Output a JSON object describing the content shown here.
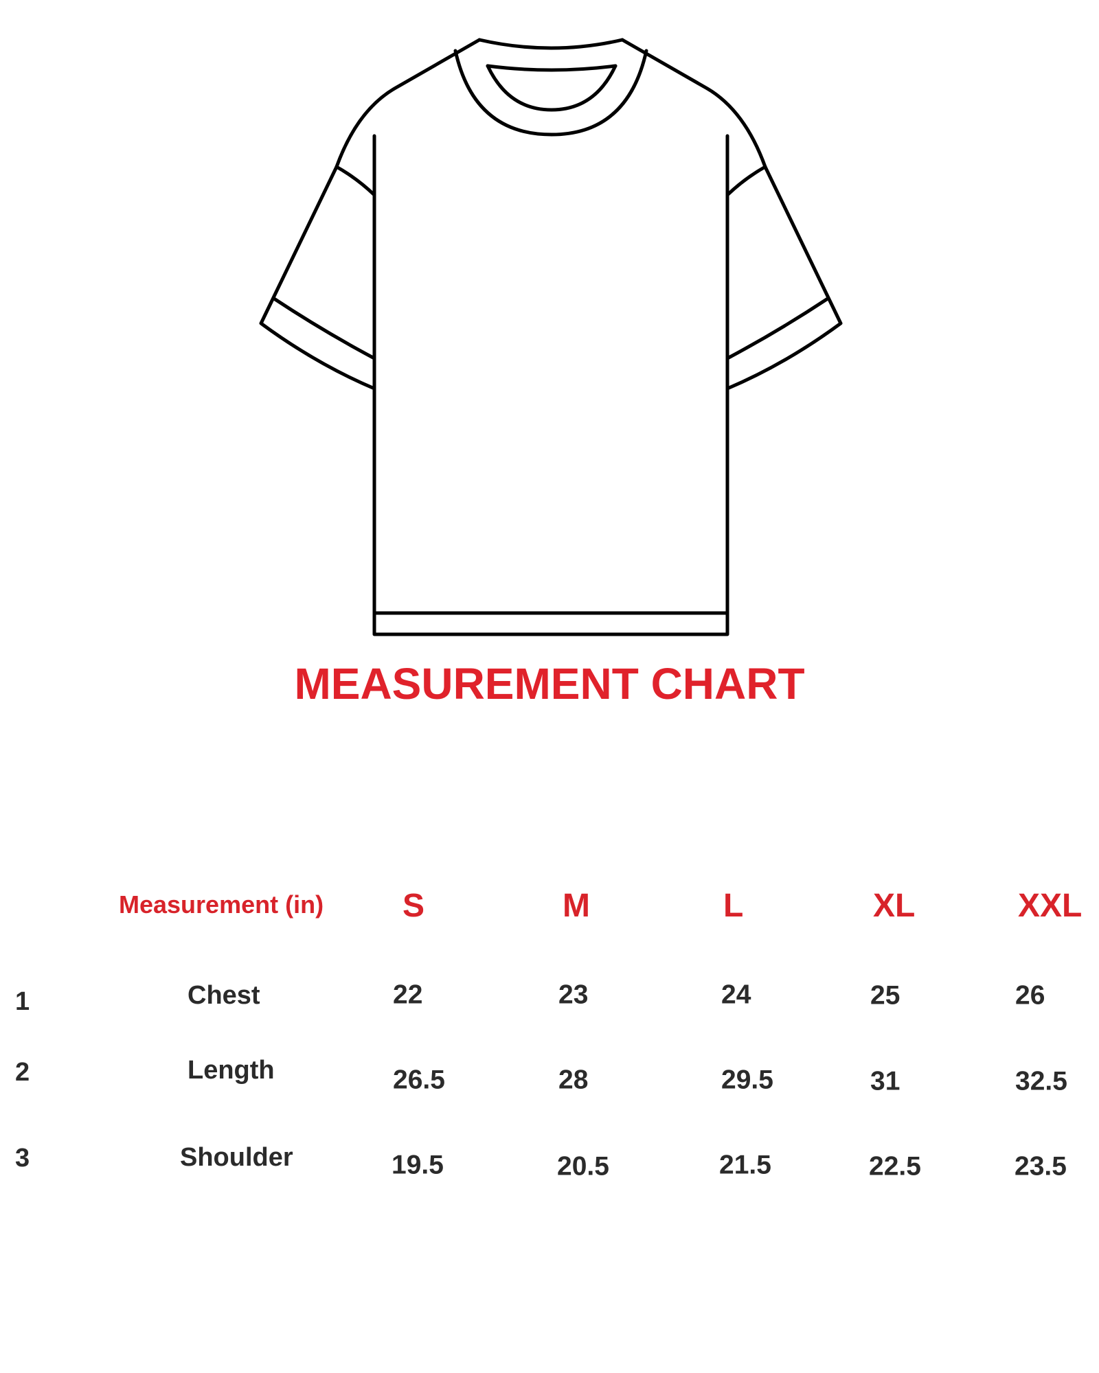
{
  "title": "MEASUREMENT CHART",
  "accent_color": "#e0222b",
  "table": {
    "header_label": "Measurement (in)",
    "sizes": [
      "S",
      "M",
      "L",
      "XL",
      "XXL"
    ],
    "rows": [
      {
        "index": "1",
        "label": "Chest",
        "values": [
          "22",
          "23",
          "24",
          "25",
          "26"
        ]
      },
      {
        "index": "2",
        "label": "Length",
        "values": [
          "26.5",
          "28",
          "29.5",
          "31",
          "32.5"
        ]
      },
      {
        "index": "3",
        "label": "Shoulder",
        "values": [
          "19.5",
          "20.5",
          "21.5",
          "22.5",
          "23.5"
        ]
      }
    ]
  }
}
